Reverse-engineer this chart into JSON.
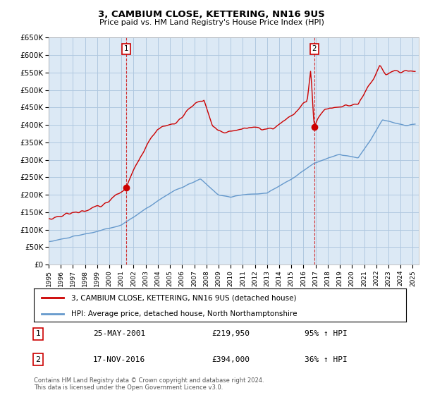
{
  "title": "3, CAMBIUM CLOSE, KETTERING, NN16 9US",
  "subtitle": "Price paid vs. HM Land Registry's House Price Index (HPI)",
  "ylim": [
    0,
    650000
  ],
  "yticks": [
    0,
    50000,
    100000,
    150000,
    200000,
    250000,
    300000,
    350000,
    400000,
    450000,
    500000,
    550000,
    600000,
    650000
  ],
  "xlim_start": 1995.0,
  "xlim_end": 2025.5,
  "sale1_date_num": 2001.39,
  "sale1_price": 219950,
  "sale1_label": "25-MAY-2001",
  "sale1_pct": "95% ↑ HPI",
  "sale2_date_num": 2016.88,
  "sale2_price": 394000,
  "sale2_label": "17-NOV-2016",
  "sale2_pct": "36% ↑ HPI",
  "red_color": "#cc0000",
  "blue_color": "#6699cc",
  "chart_bg_color": "#dce9f5",
  "background_color": "#ffffff",
  "grid_color": "#b0c8e0",
  "legend_label_red": "3, CAMBIUM CLOSE, KETTERING, NN16 9US (detached house)",
  "legend_label_blue": "HPI: Average price, detached house, North Northamptonshire",
  "footer1": "Contains HM Land Registry data © Crown copyright and database right 2024.",
  "footer2": "This data is licensed under the Open Government Licence v3.0."
}
